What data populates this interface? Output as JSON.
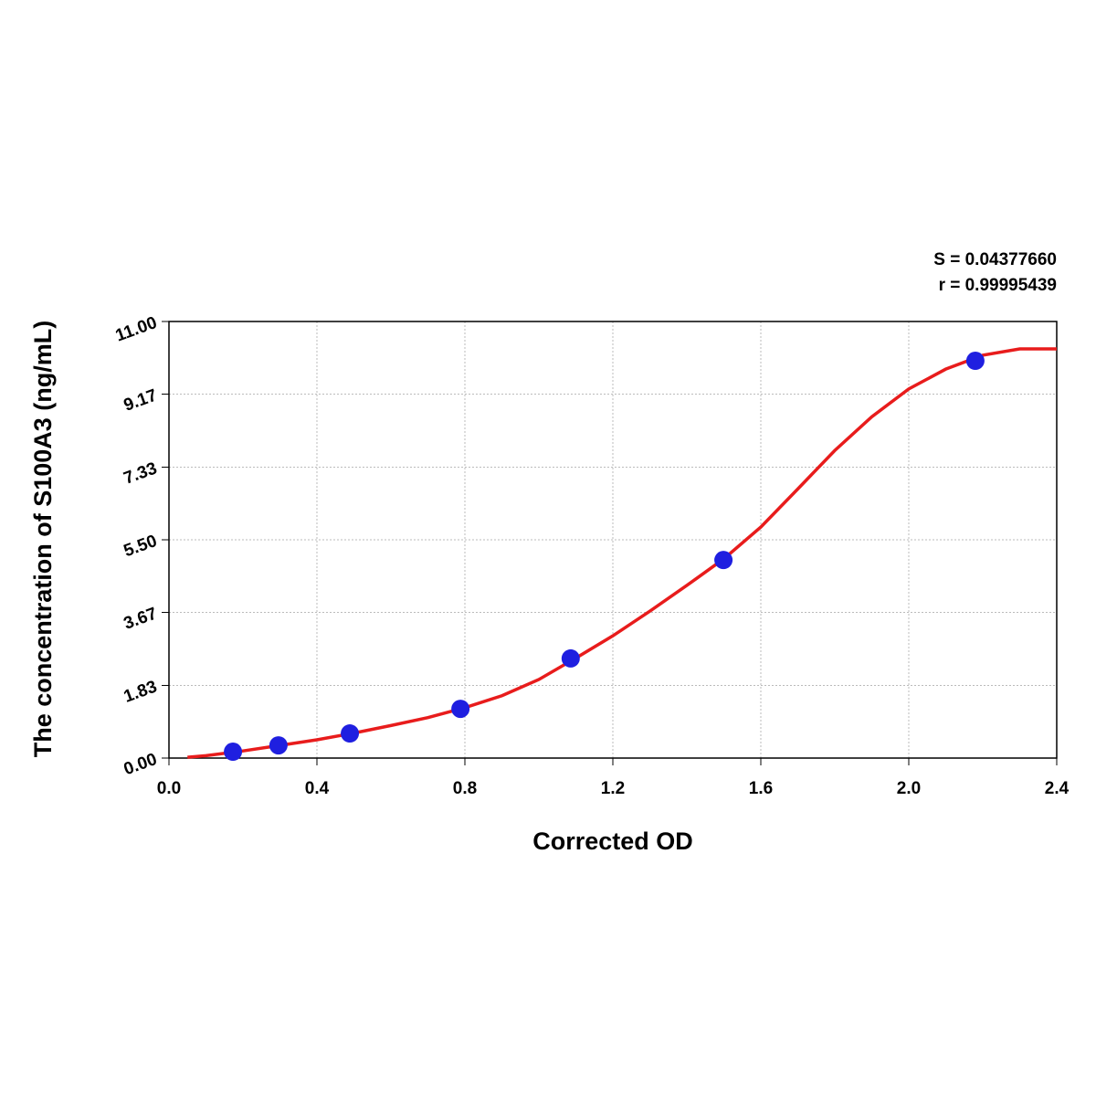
{
  "chart_data": {
    "type": "scatter",
    "x_label": "Corrected OD",
    "y_label": "The concentration of S100A3 (ng/mL)",
    "annotations": [
      "S = 0.04377660",
      "r = 0.99995439"
    ],
    "xlim": [
      0,
      2.4
    ],
    "ylim": [
      0,
      11
    ],
    "xticks": [
      {
        "value": 0,
        "label": "0.0"
      },
      0.4,
      0.8,
      1.2,
      1.6,
      {
        "value": 2,
        "label": "2.0"
      },
      2.4
    ],
    "yticks": [
      {
        "value": 0,
        "label": "0.00"
      },
      1.83,
      3.67,
      {
        "value": 5.5,
        "label": "5.50"
      },
      7.33,
      9.17,
      {
        "value": 11,
        "label": "11.00"
      }
    ],
    "grid": true,
    "points": {
      "color": "#1f1fe0",
      "x": [
        0.173,
        0.296,
        0.489,
        0.788,
        1.086,
        1.499,
        2.18
      ],
      "y": [
        0.16,
        0.32,
        0.62,
        1.24,
        2.51,
        4.99,
        10.01
      ]
    },
    "curve": {
      "color": "#e81c1c",
      "x": [
        0.05,
        0.1,
        0.2,
        0.3,
        0.4,
        0.5,
        0.6,
        0.7,
        0.8,
        0.9,
        1.0,
        1.1,
        1.2,
        1.3,
        1.4,
        1.5,
        1.6,
        1.7,
        1.8,
        1.9,
        2.0,
        2.1,
        2.2,
        2.3,
        2.4
      ],
      "y": [
        0.02,
        0.06,
        0.18,
        0.32,
        0.46,
        0.63,
        0.82,
        1.02,
        1.27,
        1.57,
        1.98,
        2.52,
        3.08,
        3.7,
        4.35,
        5.02,
        5.82,
        6.78,
        7.75,
        8.6,
        9.3,
        9.8,
        10.15,
        10.31,
        10.31
      ]
    }
  }
}
